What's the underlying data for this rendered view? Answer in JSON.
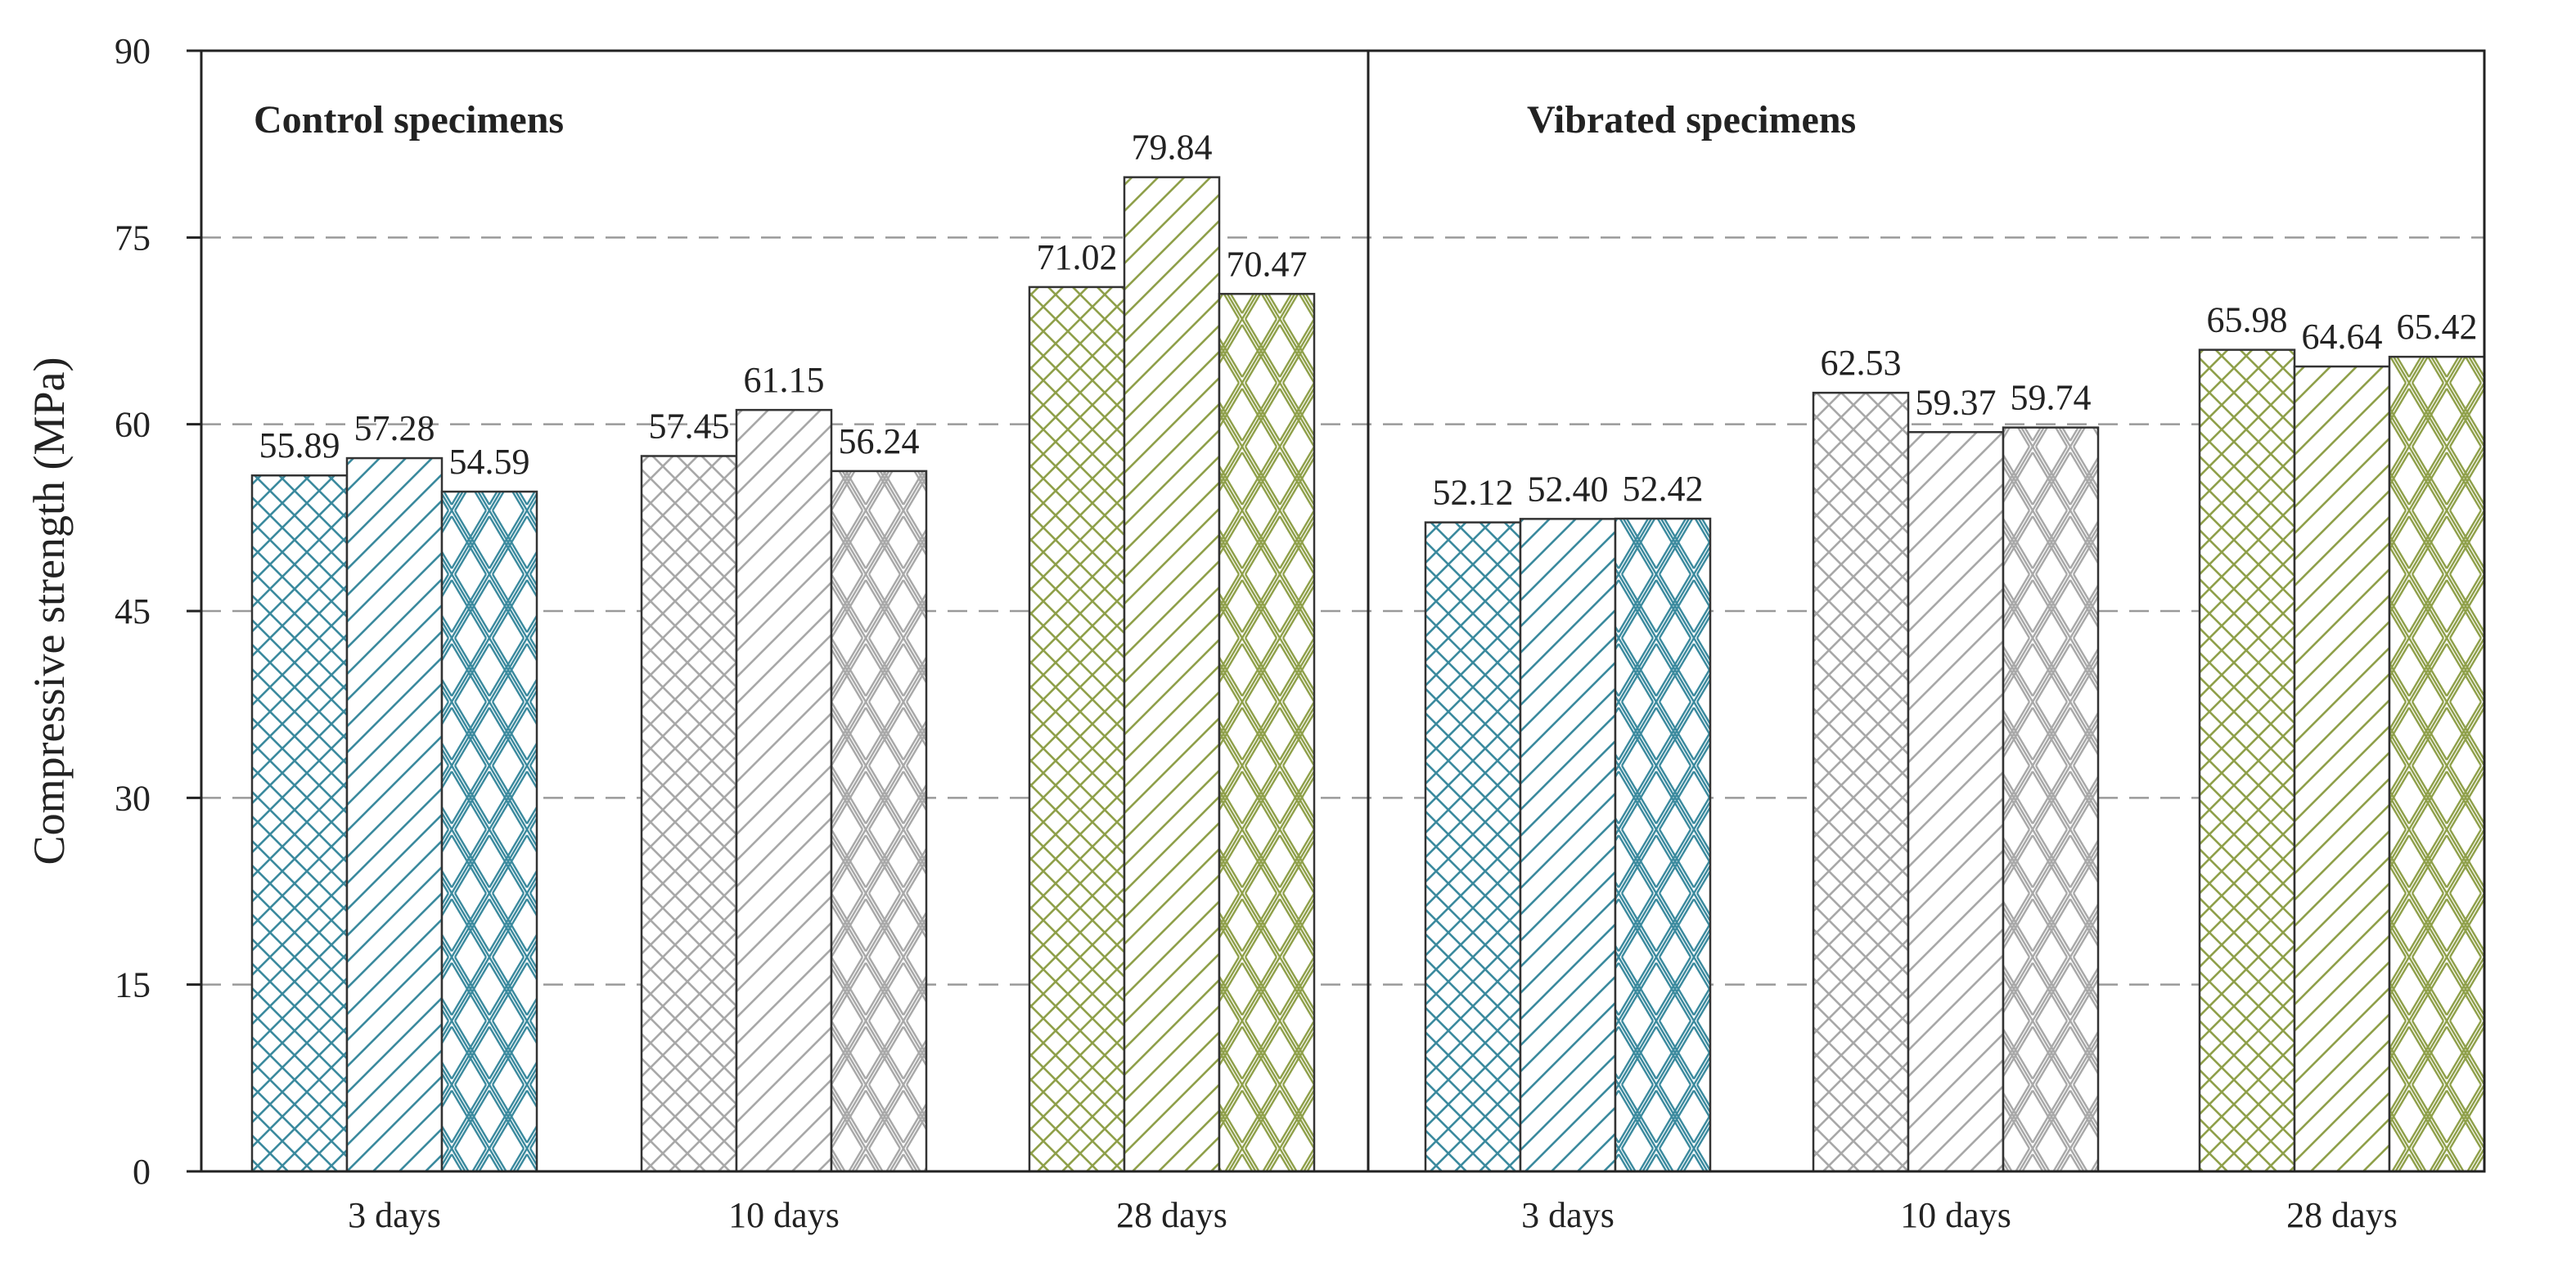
{
  "chart_data": {
    "type": "bar",
    "ylabel": "Compressive strength (MPa)",
    "ylim": [
      0,
      90
    ],
    "yticks": [
      0,
      15,
      30,
      45,
      60,
      75,
      90
    ],
    "grid": "dashed horizontal",
    "panels": [
      {
        "title": "Control specimens",
        "groups": [
          {
            "category": "3 days",
            "values": [
              55.89,
              57.28,
              54.59
            ],
            "labels": [
              "55.89",
              "57.28",
              "54.59"
            ]
          },
          {
            "category": "10 days",
            "values": [
              57.45,
              61.15,
              56.24
            ],
            "labels": [
              "57.45",
              "61.15",
              "56.24"
            ]
          },
          {
            "category": "28 days",
            "values": [
              71.02,
              79.84,
              70.47
            ],
            "labels": [
              "71.02",
              "79.84",
              "70.47"
            ]
          }
        ]
      },
      {
        "title": "Vibrated specimens",
        "groups": [
          {
            "category": "3 days",
            "values": [
              52.12,
              52.4,
              52.42
            ],
            "labels": [
              "52.12",
              "52.40",
              "52.42"
            ]
          },
          {
            "category": "10 days",
            "values": [
              62.53,
              59.37,
              59.74
            ],
            "labels": [
              "62.53",
              "59.37",
              "59.74"
            ]
          },
          {
            "category": "28 days",
            "values": [
              65.98,
              64.64,
              65.42
            ],
            "labels": [
              "65.98",
              "64.64",
              "65.42"
            ]
          }
        ]
      }
    ],
    "group_colors": [
      "#3b8a9e",
      "#a8a8a8",
      "#8fa04a"
    ],
    "bar_patterns": [
      "crosshatch",
      "diagonal",
      "diamond"
    ]
  }
}
